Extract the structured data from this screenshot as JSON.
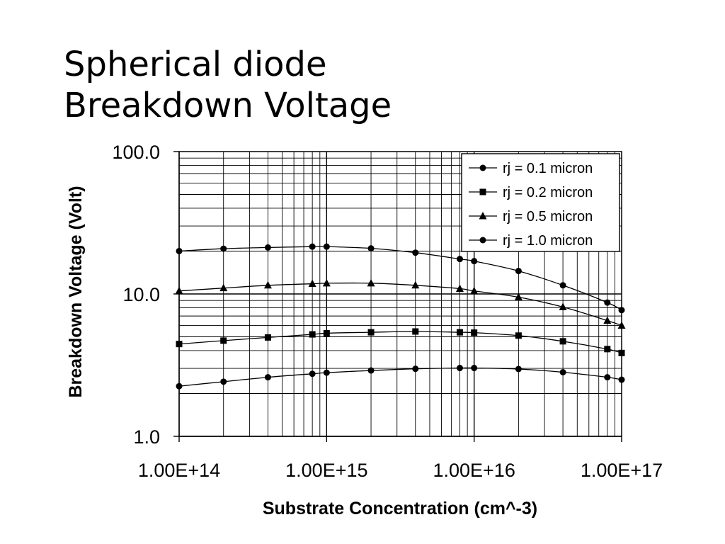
{
  "slide": {
    "title_line1": "Spherical diode",
    "title_line2": "Breakdown Voltage"
  },
  "chart_data": {
    "type": "line",
    "xlabel": "Substrate Concentration (cm^-3)",
    "ylabel": "Breakdown Voltage (Volt)",
    "x_scale": "log",
    "y_scale": "log",
    "xlim": [
      100000000000000.0,
      1e+17
    ],
    "ylim": [
      1,
      100
    ],
    "x_ticks": [
      {
        "value": 100000000000000.0,
        "label": "1.00E+14"
      },
      {
        "value": 1000000000000000.0,
        "label": "1.00E+15"
      },
      {
        "value": 1e+16,
        "label": "1.00E+16"
      },
      {
        "value": 1e+17,
        "label": "1.00E+17"
      }
    ],
    "y_ticks": [
      {
        "value": 1,
        "label": "1.0"
      },
      {
        "value": 10,
        "label": "10.0"
      },
      {
        "value": 100,
        "label": "100.0"
      }
    ],
    "grid": true,
    "legend_position": "top-right",
    "series": [
      {
        "name": "rj = 0.1 micron",
        "marker": "circle",
        "points": [
          [
            100000000000000.0,
            2.25
          ],
          [
            200000000000000.0,
            2.42
          ],
          [
            400000000000000.0,
            2.6
          ],
          [
            800000000000000.0,
            2.75
          ],
          [
            1000000000000000.0,
            2.8
          ],
          [
            2000000000000000.0,
            2.9
          ],
          [
            4000000000000000.0,
            2.98
          ],
          [
            8000000000000000.0,
            3.02
          ],
          [
            1e+16,
            3.02
          ],
          [
            2e+16,
            2.97
          ],
          [
            4e+16,
            2.82
          ],
          [
            8e+16,
            2.6
          ],
          [
            1e+17,
            2.5
          ]
        ]
      },
      {
        "name": "rj = 0.2 micron",
        "marker": "square",
        "points": [
          [
            100000000000000.0,
            4.45
          ],
          [
            200000000000000.0,
            4.7
          ],
          [
            400000000000000.0,
            4.95
          ],
          [
            800000000000000.0,
            5.2
          ],
          [
            1000000000000000.0,
            5.3
          ],
          [
            2000000000000000.0,
            5.38
          ],
          [
            4000000000000000.0,
            5.45
          ],
          [
            8000000000000000.0,
            5.38
          ],
          [
            1e+16,
            5.35
          ],
          [
            2e+16,
            5.1
          ],
          [
            4e+16,
            4.65
          ],
          [
            8e+16,
            4.1
          ],
          [
            1e+17,
            3.85
          ]
        ]
      },
      {
        "name": "rj = 0.5 micron",
        "marker": "triangle",
        "points": [
          [
            100000000000000.0,
            10.5
          ],
          [
            200000000000000.0,
            11.0
          ],
          [
            400000000000000.0,
            11.5
          ],
          [
            800000000000000.0,
            11.8
          ],
          [
            1000000000000000.0,
            11.9
          ],
          [
            2000000000000000.0,
            11.9
          ],
          [
            4000000000000000.0,
            11.5
          ],
          [
            8000000000000000.0,
            10.9
          ],
          [
            1e+16,
            10.5
          ],
          [
            2e+16,
            9.5
          ],
          [
            4e+16,
            8.1
          ],
          [
            8e+16,
            6.5
          ],
          [
            1e+17,
            6.0
          ]
        ]
      },
      {
        "name": "rj = 1.0 micron",
        "marker": "circle",
        "points": [
          [
            100000000000000.0,
            20.0
          ],
          [
            200000000000000.0,
            20.8
          ],
          [
            400000000000000.0,
            21.2
          ],
          [
            800000000000000.0,
            21.5
          ],
          [
            1000000000000000.0,
            21.5
          ],
          [
            2000000000000000.0,
            20.9
          ],
          [
            4000000000000000.0,
            19.5
          ],
          [
            8000000000000000.0,
            17.6
          ],
          [
            1e+16,
            17.0
          ],
          [
            2e+16,
            14.5
          ],
          [
            4e+16,
            11.5
          ],
          [
            8e+16,
            8.7
          ],
          [
            1e+17,
            7.7
          ]
        ]
      }
    ]
  }
}
